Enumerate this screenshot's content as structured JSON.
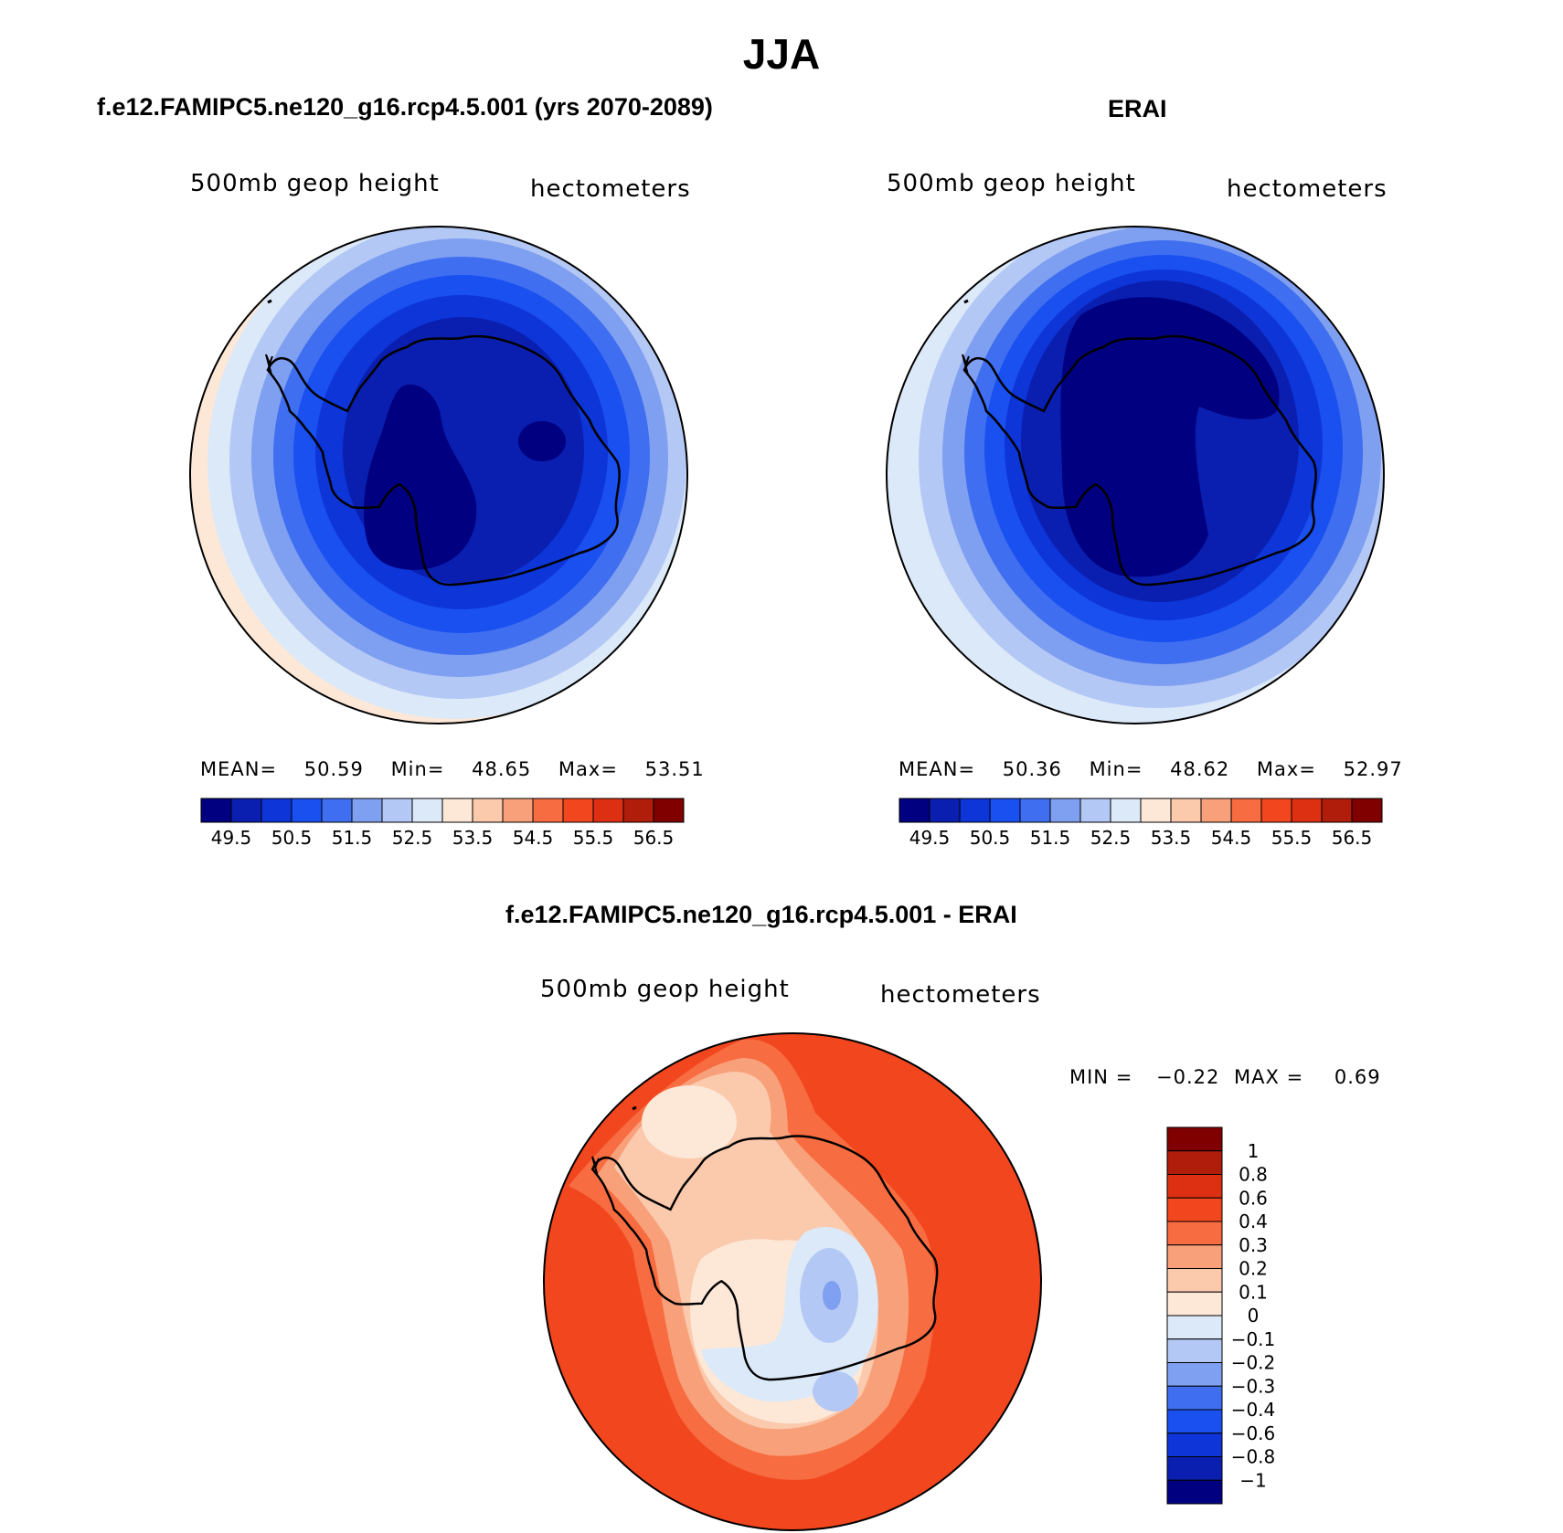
{
  "main_title": "JJA",
  "panels": {
    "model": {
      "title": "f.e12.FAMIPC5.ne120_g16.rcp4.5.001 (yrs 2070-2089)",
      "field": "500mb geop height",
      "units": "hectometers",
      "mean_label": "MEAN=",
      "mean": "50.59",
      "min_label": "Min=",
      "min": "48.65",
      "max_label": "Max=",
      "max": "53.51"
    },
    "obs": {
      "title": "ERAI",
      "field": "500mb geop height",
      "units": "hectometers",
      "mean_label": "MEAN=",
      "mean": "50.36",
      "min_label": "Min=",
      "min": "48.62",
      "max_label": "Max=",
      "max": "52.97"
    },
    "diff": {
      "title": "f.e12.FAMIPC5.ne120_g16.rcp4.5.001 - ERAI",
      "field": "500mb geop height",
      "units": "hectometers",
      "min_label": "MIN =",
      "min": "−0.22",
      "max_label": "MAX =",
      "max": "0.69"
    }
  },
  "colorbar_abs": {
    "colors": [
      "#000080",
      "#0a1fb0",
      "#0d35d8",
      "#1a4ff0",
      "#3f6ff0",
      "#7f9ff0",
      "#b4c8f5",
      "#dce9f8",
      "#fde8d8",
      "#fbc9ac",
      "#f8a07a",
      "#f76c40",
      "#f2461e",
      "#dd3013",
      "#b01d0b",
      "#800000"
    ],
    "labels": [
      "49.5",
      "50.5",
      "51.5",
      "52.5",
      "53.5",
      "54.5",
      "55.5",
      "56.5"
    ]
  },
  "colorbar_diff": {
    "colors": [
      "#800000",
      "#b01d0b",
      "#dd3013",
      "#f2461e",
      "#f76c40",
      "#f8a07a",
      "#fbc9ac",
      "#fde8d8",
      "#dce9f8",
      "#b4c8f5",
      "#7f9ff0",
      "#3f6ff0",
      "#1a4ff0",
      "#0d35d8",
      "#0a1fb0",
      "#000080"
    ],
    "labels": [
      "1",
      "0.8",
      "0.6",
      "0.4",
      "0.3",
      "0.2",
      "0.1",
      "0",
      "−0.1",
      "−0.2",
      "−0.3",
      "−0.4",
      "−0.6",
      "−0.8",
      "−1"
    ]
  },
  "map_colors": {
    "model": [
      "#fde8d8",
      "#dce9f8",
      "#b4c8f5",
      "#7f9ff0",
      "#3f6ff0",
      "#1a4ff0",
      "#0d35d8",
      "#0a1fb0",
      "#000080"
    ],
    "obs": [
      "#dce9f8",
      "#b4c8f5",
      "#7f9ff0",
      "#3f6ff0",
      "#1a4ff0",
      "#0d35d8",
      "#0a1fb0",
      "#000080"
    ],
    "diff": {
      "strong_pos": "#f2461e",
      "pos_04": "#f76c40",
      "pos_03": "#f8a07a",
      "pos_02": "#fbc9ac",
      "pos_01": "#fde8d8",
      "neg_01": "#dce9f8",
      "neg_02": "#b4c8f5",
      "neg_03": "#7f9ff0",
      "pos_06": "#dd3013"
    }
  }
}
